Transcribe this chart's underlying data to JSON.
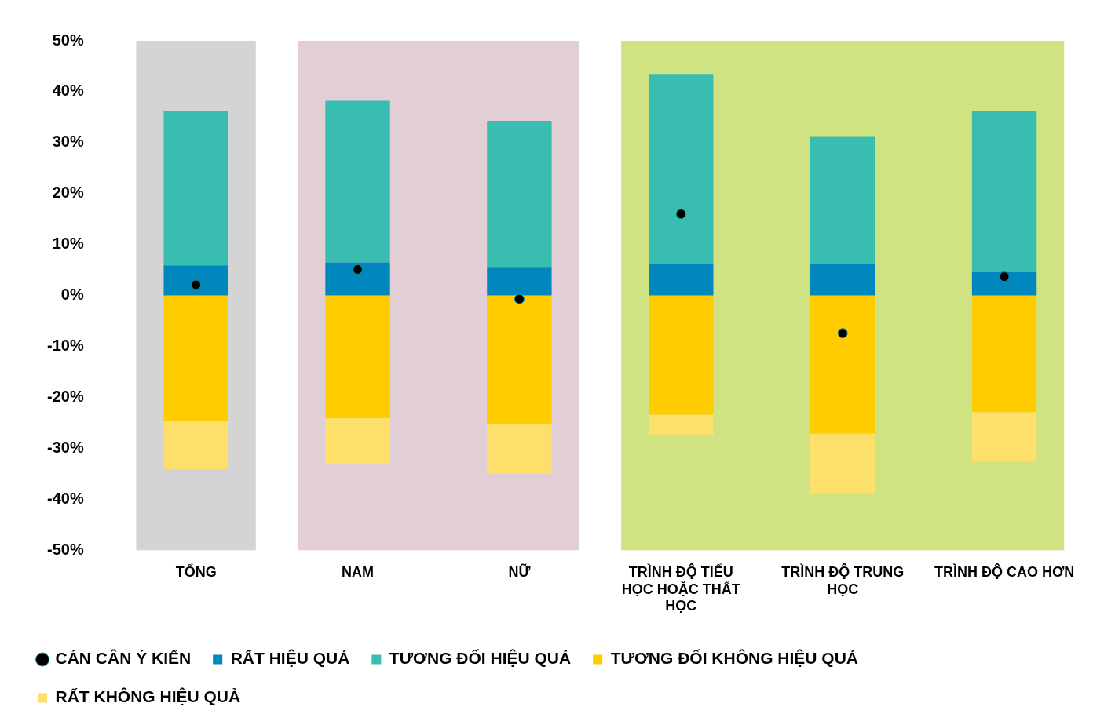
{
  "chart_data": {
    "type": "bar",
    "stacked": true,
    "categories": [
      "TỔNG",
      "NAM",
      "NỮ",
      "TRÌNH ĐỘ TIỂU HỌC HOẶC THẤT HỌC",
      "TRÌNH ĐỘ TRUNG HỌC",
      "TRÌNH ĐỘ CAO HƠN"
    ],
    "series": [
      {
        "name": "RẤT HIỆU QUẢ",
        "color": "#0087bd",
        "values": [
          5.9,
          6.5,
          5.6,
          6.2,
          6.3,
          4.6
        ]
      },
      {
        "name": "TƯƠNG ĐỐI HIỆU QUẢ",
        "color": "#38bdb0",
        "values": [
          30.3,
          31.7,
          28.7,
          37.3,
          25.0,
          31.7
        ]
      },
      {
        "name": "TƯƠNG ĐỐI KHÔNG HIỆU QUẢ",
        "color": "#ffcc00",
        "values": [
          -24.7,
          -24.1,
          -25.3,
          -23.4,
          -27.1,
          -22.9
        ]
      },
      {
        "name": "RẤT KHÔNG HIỆU QUẢ",
        "color": "#fde06b",
        "values": [
          -9.4,
          -9.0,
          -9.7,
          -4.1,
          -11.7,
          -9.7
        ]
      },
      {
        "name": "CÁN CÂN Ý KIẾN",
        "type": "scatter",
        "color": "#000000",
        "x": [
          "TỔNG",
          "NAM",
          "NỮ",
          "TRÌNH ĐỘ TIỂU HỌC HOẶC THẤT HỌC",
          "TRÌNH ĐỘ TRUNG HỌC",
          "TRÌNH ĐỘ CAO HƠN"
        ],
        "values": [
          2.1,
          5.1,
          -0.7,
          16.0,
          -7.4,
          3.7
        ]
      }
    ],
    "ylim": [
      -50,
      50
    ],
    "yticks": [
      {
        "value": 50,
        "label": "50%"
      },
      {
        "value": 40,
        "label": "40%"
      },
      {
        "value": 30,
        "label": "30%"
      },
      {
        "value": 20,
        "label": "20%"
      },
      {
        "value": 10,
        "label": "10%"
      },
      {
        "value": 0,
        "label": "0%"
      },
      {
        "value": -10,
        "label": "-10%"
      },
      {
        "value": -20,
        "label": "-20%"
      },
      {
        "value": -30,
        "label": "-30%"
      },
      {
        "value": -40,
        "label": "-40%"
      },
      {
        "value": -50,
        "label": "-50%"
      }
    ],
    "bands": [
      {
        "axis": "x",
        "from": "TỔNG",
        "to": "TỔNG",
        "color": "#d4d4d4"
      },
      {
        "axis": "x",
        "from": "NAM",
        "to": "NỮ",
        "color": "#e1cfd5"
      },
      {
        "axis": "x",
        "from": "TRÌNH ĐỘ TIỂU HỌC HOẶC THẤT HỌC",
        "to": "TRÌNH ĐỘ CAO HƠN",
        "color": "#cfe383"
      }
    ],
    "grid": false,
    "legend": "bottom",
    "marker": "circle"
  }
}
